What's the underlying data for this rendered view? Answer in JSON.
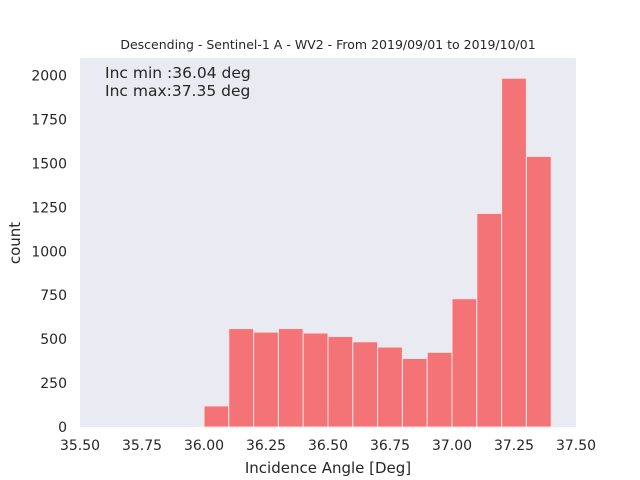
{
  "chart_data": {
    "type": "bar",
    "title": "Descending - Sentinel-1 A - WV2 - From 2019/09/01 to 2019/10/01",
    "xlabel": "Incidence Angle [Deg]",
    "ylabel": "count",
    "xlim": [
      35.5,
      37.5
    ],
    "ylim": [
      0,
      2100
    ],
    "xticks": [
      "35.50",
      "35.75",
      "36.00",
      "36.25",
      "36.50",
      "36.75",
      "37.00",
      "37.25",
      "37.50"
    ],
    "yticks": [
      "0",
      "250",
      "500",
      "750",
      "1000",
      "1250",
      "1500",
      "1750",
      "2000"
    ],
    "grid": false,
    "bins": [
      {
        "x0": 36.0,
        "x1": 36.1,
        "count": 120
      },
      {
        "x0": 36.1,
        "x1": 36.2,
        "count": 560
      },
      {
        "x0": 36.2,
        "x1": 36.3,
        "count": 540
      },
      {
        "x0": 36.3,
        "x1": 36.4,
        "count": 560
      },
      {
        "x0": 36.4,
        "x1": 36.5,
        "count": 535
      },
      {
        "x0": 36.5,
        "x1": 36.6,
        "count": 515
      },
      {
        "x0": 36.6,
        "x1": 36.7,
        "count": 485
      },
      {
        "x0": 36.7,
        "x1": 36.8,
        "count": 455
      },
      {
        "x0": 36.8,
        "x1": 36.9,
        "count": 390
      },
      {
        "x0": 36.9,
        "x1": 37.0,
        "count": 425
      },
      {
        "x0": 37.0,
        "x1": 37.1,
        "count": 730
      },
      {
        "x0": 37.1,
        "x1": 37.2,
        "count": 1215
      },
      {
        "x0": 37.2,
        "x1": 37.3,
        "count": 1985
      },
      {
        "x0": 37.3,
        "x1": 37.4,
        "count": 1540
      }
    ],
    "annotations": [
      "Inc min :36.04 deg",
      "Inc max:37.35 deg"
    ],
    "bar_color": "#f47377",
    "background_color": "#eaeaf2"
  }
}
